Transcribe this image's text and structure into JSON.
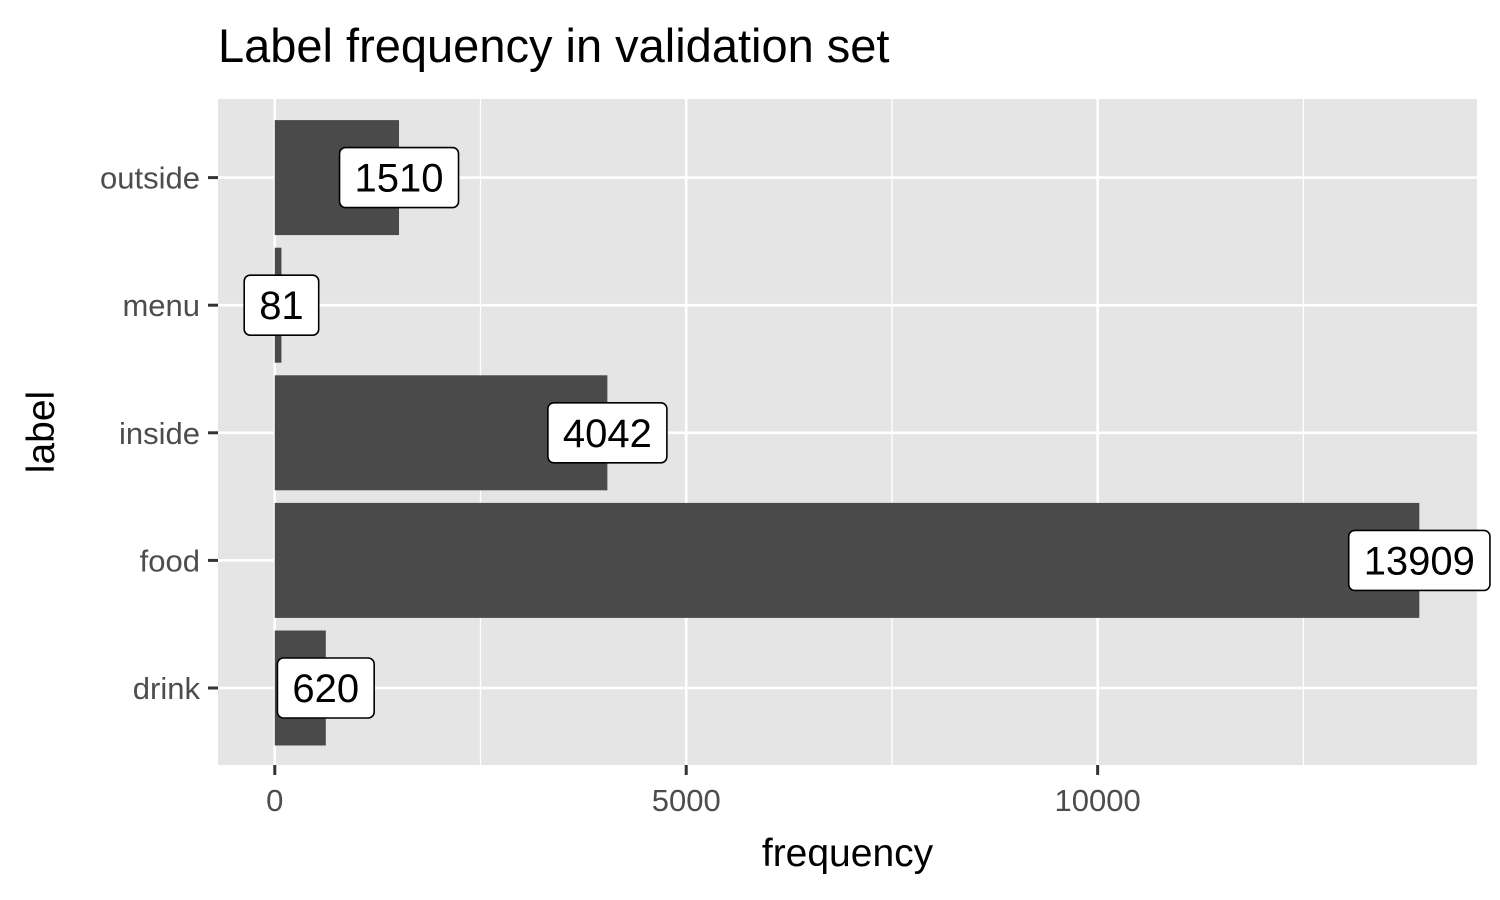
{
  "chart_data": {
    "type": "bar",
    "orientation": "horizontal",
    "title": "Label frequency in validation set",
    "xlabel": "frequency",
    "ylabel": "label",
    "categories": [
      "drink",
      "food",
      "inside",
      "menu",
      "outside"
    ],
    "values": [
      620,
      13909,
      4042,
      81,
      1510
    ],
    "data_labels": [
      "620",
      "13909",
      "4042",
      "81",
      "1510"
    ],
    "xlim": [
      -690,
      14610
    ],
    "x_ticks": [
      0,
      5000,
      10000
    ],
    "x_tick_labels": [
      "0",
      "5000",
      "10000"
    ],
    "grid": true,
    "legend": "none",
    "colors": {
      "panel": "#e5e5e5",
      "grid": "#ffffff",
      "bar": "#4a4a4a",
      "label_fill": "#ffffff",
      "label_border": "#000000"
    }
  }
}
